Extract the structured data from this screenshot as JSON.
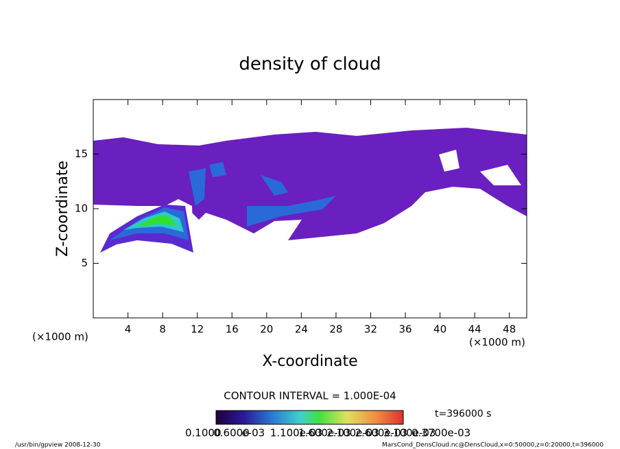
{
  "chart_data": {
    "type": "contour",
    "title": "density of cloud",
    "x_label": "X-coordinate",
    "y_label": "Z-coordinate",
    "x_unit": "(×1000 m)",
    "y_unit": "(×1000 m)",
    "xlim": [
      0,
      50
    ],
    "xticks": [
      4,
      8,
      12,
      16,
      20,
      24,
      28,
      32,
      36,
      40,
      44,
      48
    ],
    "ylim": [
      0,
      20
    ],
    "yticks": [
      5,
      10,
      15
    ],
    "contour_interval_text": "CONTOUR INTERVAL = 1.000E-04",
    "time_text": "t=396000 s",
    "colorbar_labels": [
      "0.1000",
      "0.6000",
      "e-03",
      "1.100e-03",
      "1.600e-03",
      "2.100e-03",
      "2.600e-03",
      "3.100e-03",
      "0.3700e-03"
    ],
    "footer_left": "/usr/bin/gpview   2008-12-30",
    "footer_right": "MarsCond_DensCloud.nc@DensCloud,x=0:50000,z=0:20000,t=396000"
  }
}
